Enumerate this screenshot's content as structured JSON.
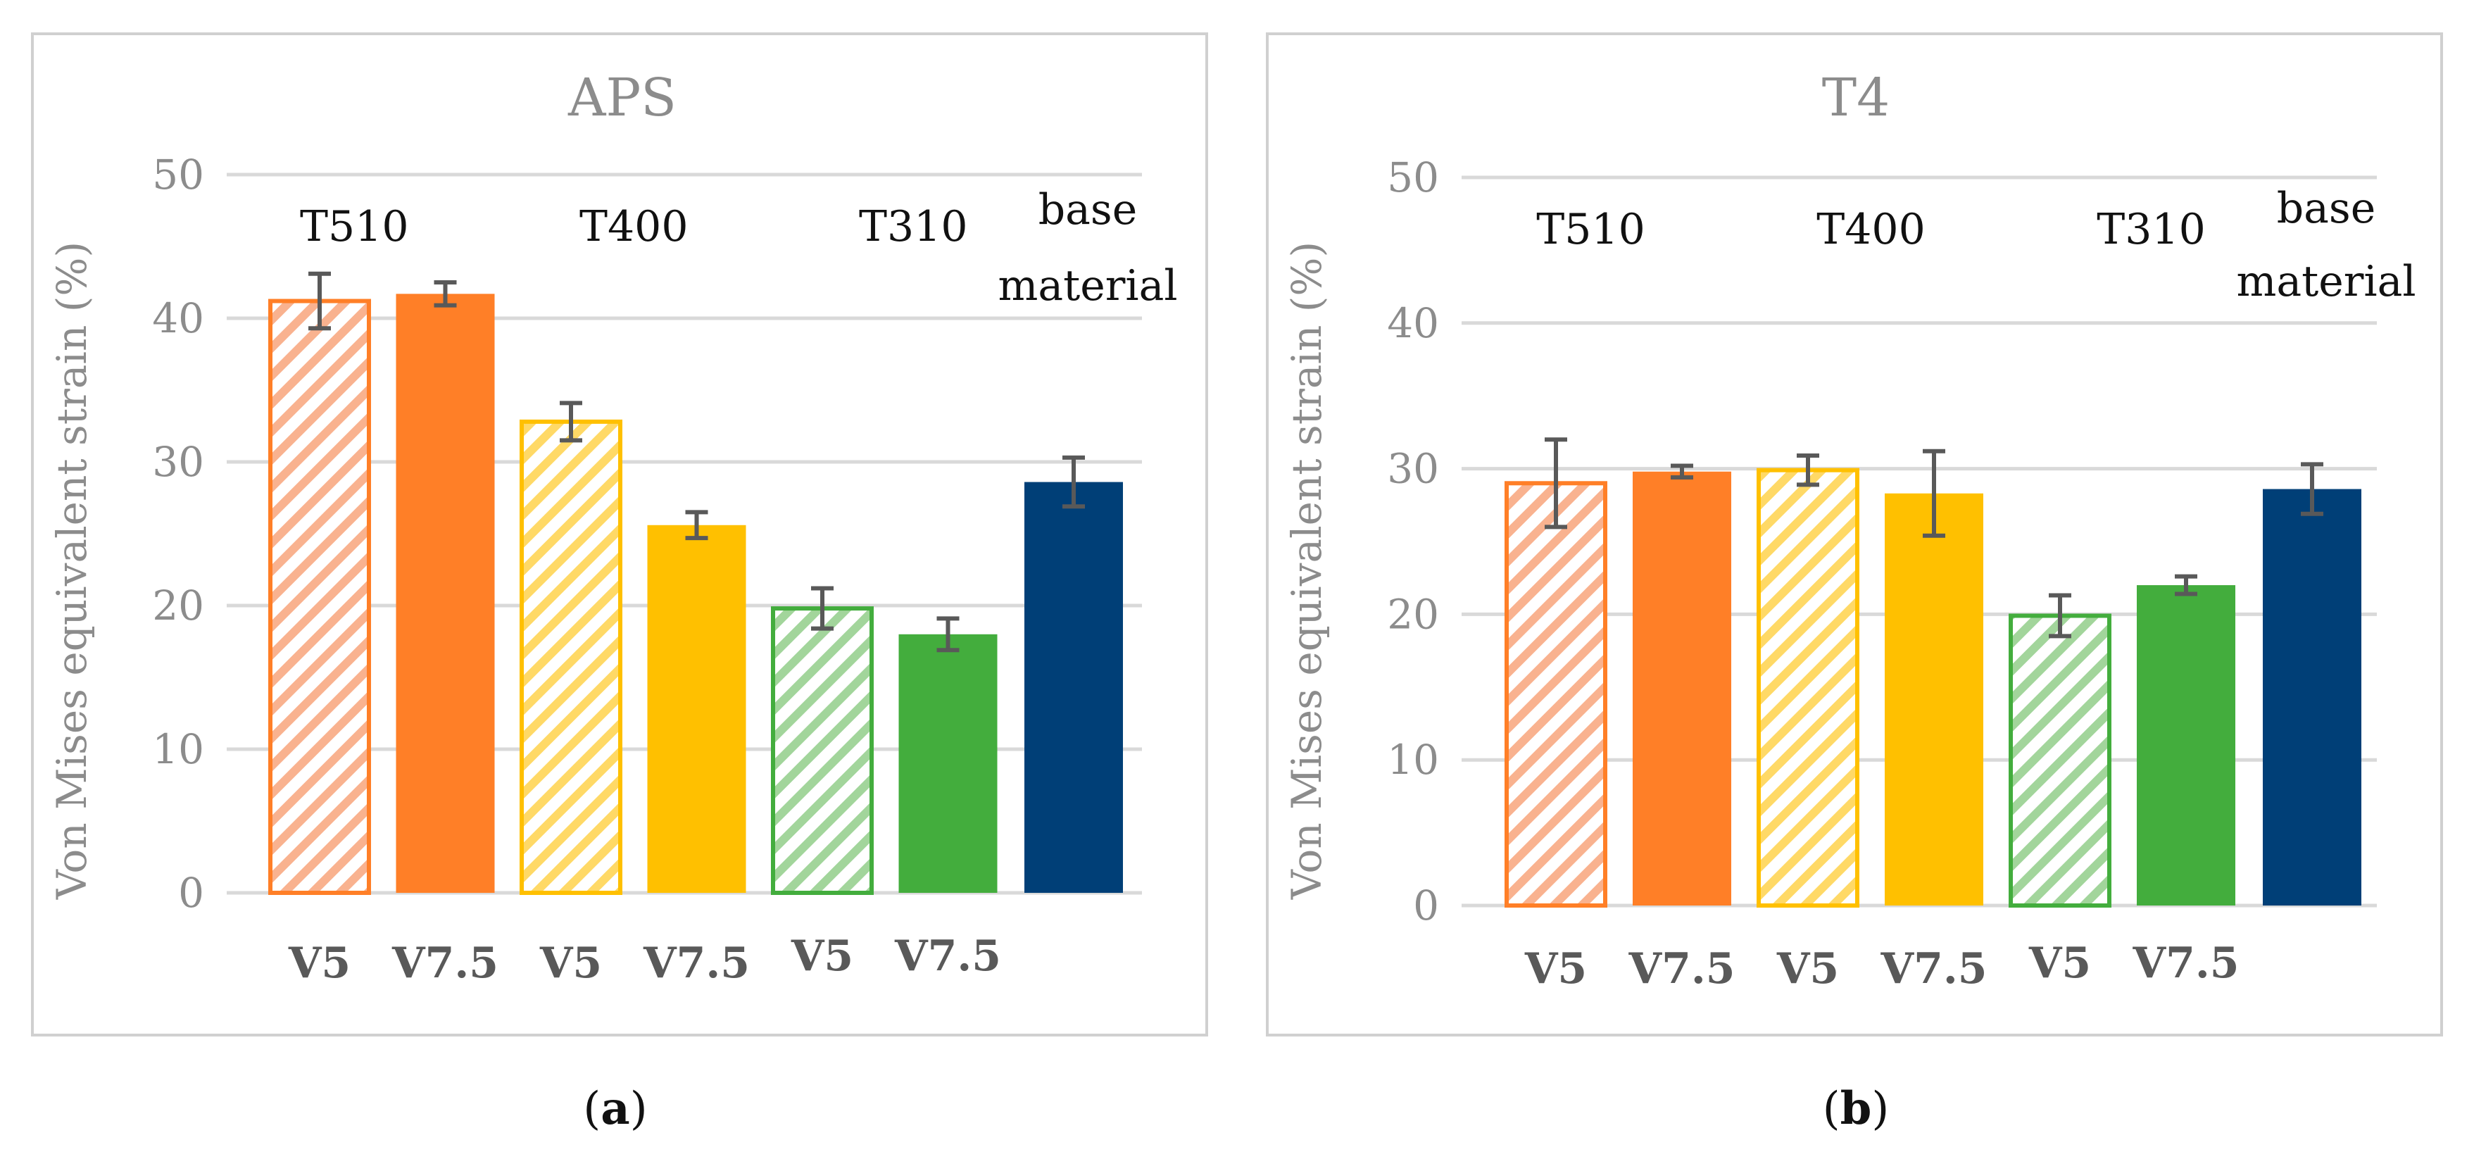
{
  "colors": {
    "orange": "#ff7f27",
    "orange_light": "#f9b28f",
    "yellow": "#ffc000",
    "yellow_light": "#ffd966",
    "green": "#43ad3d",
    "green_light": "#a2d59b",
    "navy": "#003f77"
  },
  "chart_data": [
    {
      "type": "bar",
      "title": "APS",
      "ylabel": "Von Mises equivalent strain (%)",
      "xlabel": "",
      "ylim": [
        0,
        50
      ],
      "yticks": [
        0,
        10,
        20,
        30,
        40,
        50
      ],
      "grid": true,
      "categories": [
        "V5",
        "V7.5",
        "V5",
        "V7.5",
        "V5",
        "V7.5",
        ""
      ],
      "values": [
        41.2,
        41.7,
        32.8,
        25.6,
        19.8,
        18.0,
        28.6
      ],
      "errors": [
        1.9,
        0.8,
        1.3,
        0.9,
        1.4,
        1.1,
        1.7
      ],
      "bar_styles": [
        "hatched",
        "solid",
        "hatched",
        "solid",
        "hatched",
        "solid",
        "solid"
      ],
      "bar_colors": [
        "orange",
        "orange",
        "yellow",
        "yellow",
        "green",
        "green",
        "navy"
      ],
      "groups": [
        {
          "label": "T510",
          "bars": [
            0,
            1
          ]
        },
        {
          "label": "T400",
          "bars": [
            2,
            3
          ]
        },
        {
          "label": "T310",
          "bars": [
            4,
            5
          ]
        },
        {
          "label": "base material",
          "bars": [
            6
          ]
        }
      ],
      "caption": "a"
    },
    {
      "type": "bar",
      "title": "T4",
      "ylabel": "Von Mises equivalent strain (%)",
      "xlabel": "",
      "ylim": [
        0,
        50
      ],
      "yticks": [
        0,
        10,
        20,
        30,
        40,
        50
      ],
      "grid": true,
      "categories": [
        "V5",
        "V7.5",
        "V5",
        "V7.5",
        "V5",
        "V7.5",
        ""
      ],
      "values": [
        29.0,
        29.8,
        29.9,
        28.3,
        19.9,
        22.0,
        28.6
      ],
      "errors": [
        3.0,
        0.4,
        1.0,
        2.9,
        1.4,
        0.6,
        1.7
      ],
      "bar_styles": [
        "hatched",
        "solid",
        "hatched",
        "solid",
        "hatched",
        "solid",
        "solid"
      ],
      "bar_colors": [
        "orange",
        "orange",
        "yellow",
        "yellow",
        "green",
        "green",
        "navy"
      ],
      "groups": [
        {
          "label": "T510",
          "bars": [
            0,
            1
          ]
        },
        {
          "label": "T400",
          "bars": [
            2,
            3
          ]
        },
        {
          "label": "T310",
          "bars": [
            4,
            5
          ]
        },
        {
          "label": "base material",
          "bars": [
            6
          ]
        }
      ],
      "caption": "b"
    }
  ]
}
